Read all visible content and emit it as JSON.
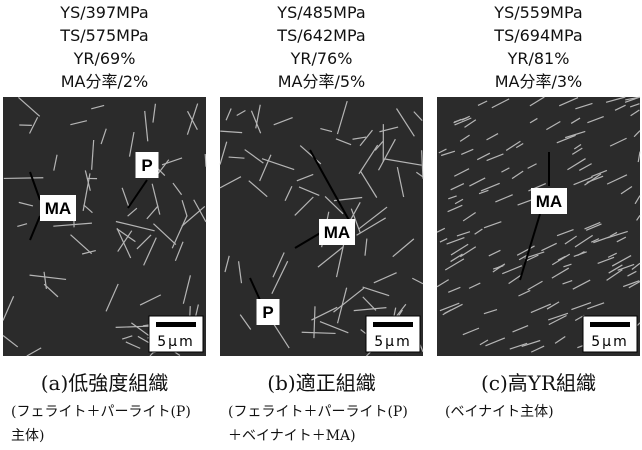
{
  "panels": [
    {
      "properties": [
        "YS/397MPa",
        "TS/575MPa",
        "YR/69%",
        "MA分率/2%"
      ],
      "labels": [
        "P",
        "MA"
      ],
      "scale": "5μm",
      "caption": "(a)低強度組織",
      "note": [
        "(フェライト＋パーライト(P)",
        "主体)"
      ]
    },
    {
      "properties": [
        "YS/485MPa",
        "TS/642MPa",
        "YR/76%",
        "MA分率/5%"
      ],
      "labels": [
        "MA",
        "P"
      ],
      "scale": "5μm",
      "caption": "(b)適正組織",
      "note": [
        "(フェライト＋パーライト(P)",
        "＋ベイナイト＋MA)"
      ]
    },
    {
      "properties": [
        "YS/559MPa",
        "TS/694MPa",
        "YR/81%",
        "MA分率/3%"
      ],
      "labels": [
        "MA"
      ],
      "scale": "5μm",
      "caption": "(c)高YR組織",
      "note": [
        "(ベイナイト主体)"
      ]
    }
  ]
}
